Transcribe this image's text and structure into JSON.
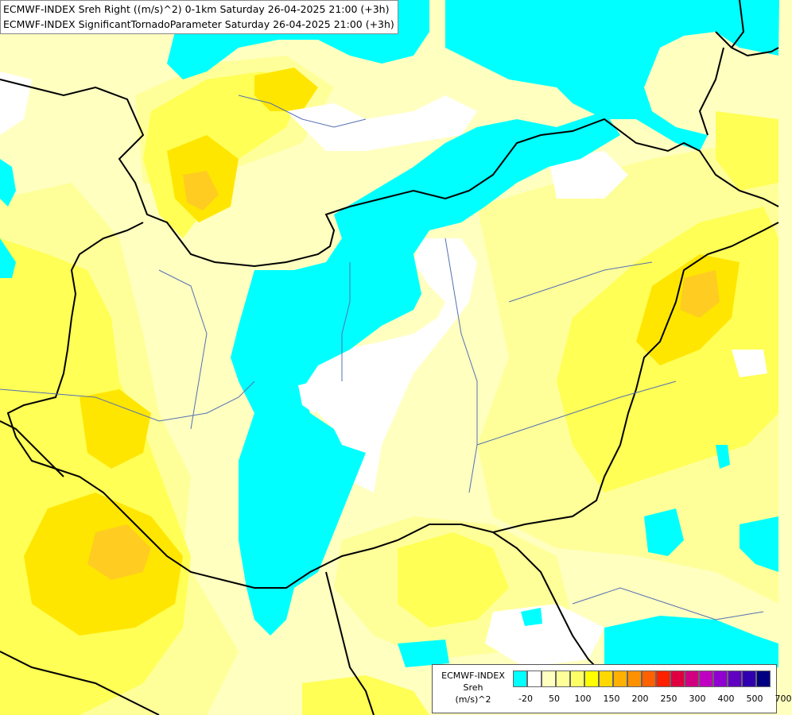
{
  "header": {
    "line1": "ECMWF-INDEX Sreh Right ((m/s)^2) 0-1km Saturday 26-04-2025 21:00 (+3h)",
    "line2": "ECMWF-INDEX SignificantTornadoParameter Saturday 26-04-2025 21:00 (+3h)"
  },
  "legend": {
    "title": "ECMWF-INDEX",
    "subtitle": "Sreh",
    "unit": "(m/s)^2",
    "colors": [
      "#00ffff",
      "#ffffff",
      "#ffffc0",
      "#ffff99",
      "#ffff66",
      "#ffff00",
      "#ffd800",
      "#ffb000",
      "#ff9000",
      "#ff6000",
      "#ff2000",
      "#e00040",
      "#d00080",
      "#c000c0",
      "#9000d0",
      "#6000c0",
      "#3000b0",
      "#000080"
    ],
    "ticks": [
      "-20",
      "50",
      "100",
      "150",
      "200",
      "250",
      "300",
      "400",
      "500",
      "700"
    ]
  },
  "map_colors": {
    "background": "#ffffc0",
    "negative": "#00ffff",
    "near_zero": "#ffffff",
    "light": "#ffff99",
    "medium": "#ffff55",
    "strong": "#ffe600",
    "peak": "#ffcc22",
    "border": "#000000",
    "river": "#5570b0"
  }
}
